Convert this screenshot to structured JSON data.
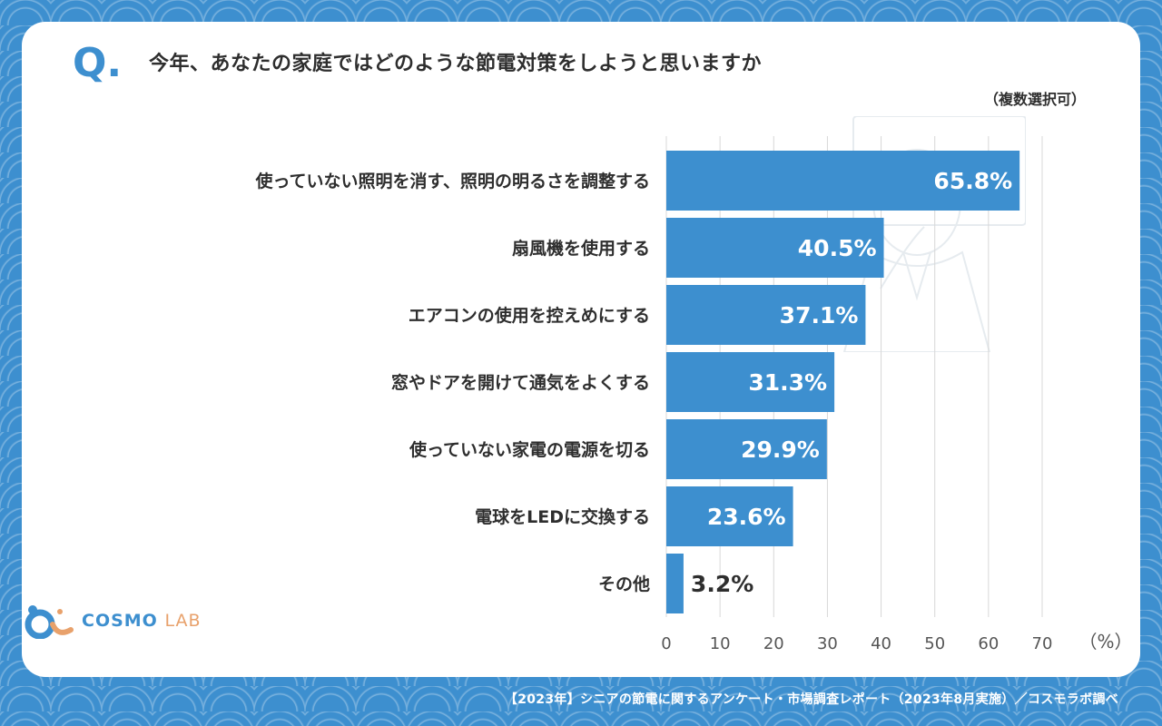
{
  "question": {
    "mark": "Q.",
    "title": "今年、あなたの家庭ではどのような節電対策をしようと思いますか",
    "note": "（複数選択可）"
  },
  "colors": {
    "bar": "#3d8fcf",
    "background": "#3d8fcf",
    "grid": "#d8d8d8",
    "text": "#2e2e2e",
    "logo_accent": "#e8a16b"
  },
  "chart_data": {
    "type": "bar",
    "orientation": "horizontal",
    "categories": [
      "使っていない照明を消す、照明の明るさを調整する",
      "扇風機を使用する",
      "エアコンの使用を控えめにする",
      "窓やドアを開けて通気をよくする",
      "使っていない家電の電源を切る",
      "電球をLEDに交換する",
      "その他"
    ],
    "values": [
      65.8,
      40.5,
      37.1,
      31.3,
      29.9,
      23.6,
      3.2
    ],
    "value_labels": [
      "65.8%",
      "40.5%",
      "37.1%",
      "31.3%",
      "29.9%",
      "23.6%",
      "3.2%"
    ],
    "x_ticks": [
      "0",
      "10",
      "20",
      "30",
      "40",
      "50",
      "60",
      "70"
    ],
    "x_unit": "（%）",
    "xlim": [
      0,
      70
    ],
    "grid": true
  },
  "logo": {
    "name": "COSMO",
    "suffix": "LAB"
  },
  "footer": "【2023年】シニアの節電に関するアンケート・市場調査レポート（2023年8月実施）／コスモラボ調べ"
}
